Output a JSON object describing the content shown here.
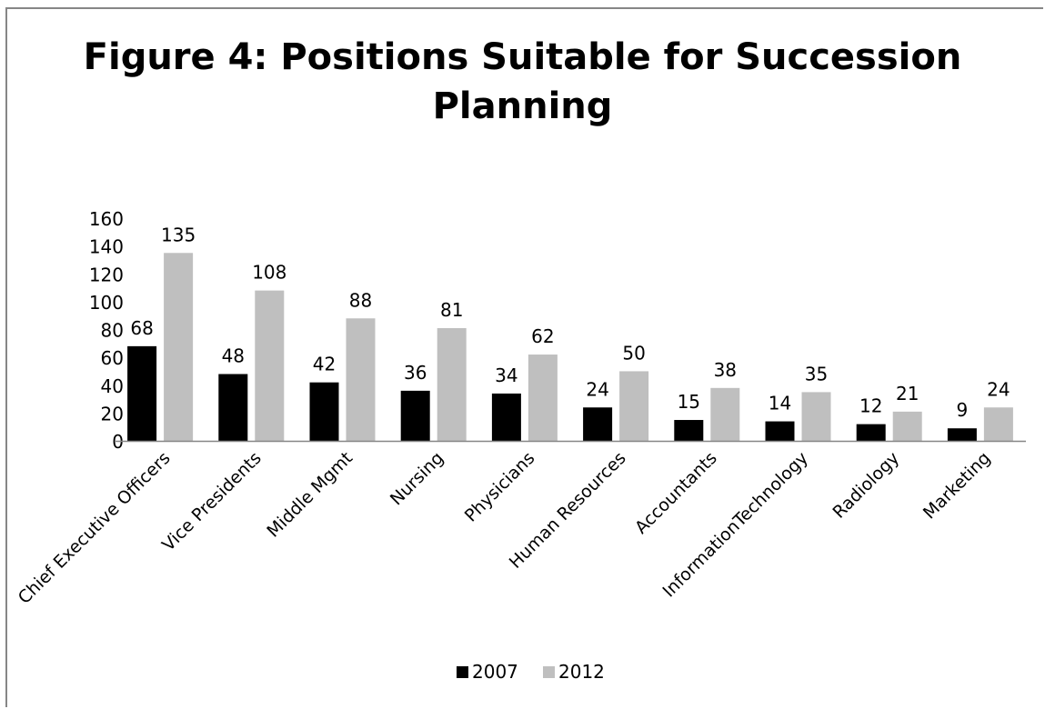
{
  "chart_data": {
    "type": "bar",
    "title": "Figure 4:  Positions Suitable for Succession Planning",
    "categories": [
      "Chief Executive Officers",
      "Vice Presidents",
      "Middle Mgmt",
      "Nursing",
      "Physicians",
      "Human Resources",
      "Accountants",
      "InformationTechnology",
      "Radiology",
      "Marketing"
    ],
    "series": [
      {
        "name": "2007",
        "color": "#000000",
        "values": [
          68,
          48,
          42,
          36,
          34,
          24,
          15,
          14,
          12,
          9
        ]
      },
      {
        "name": "2012",
        "color": "#bfbfbf",
        "values": [
          135,
          108,
          88,
          81,
          62,
          50,
          38,
          35,
          21,
          24
        ]
      }
    ],
    "xlabel": "",
    "ylabel": "",
    "ylim": [
      0,
      160
    ],
    "yticks": [
      0,
      20,
      40,
      60,
      80,
      100,
      120,
      140,
      160
    ],
    "grid": false,
    "legend_position": "bottom",
    "data_labels": true
  }
}
